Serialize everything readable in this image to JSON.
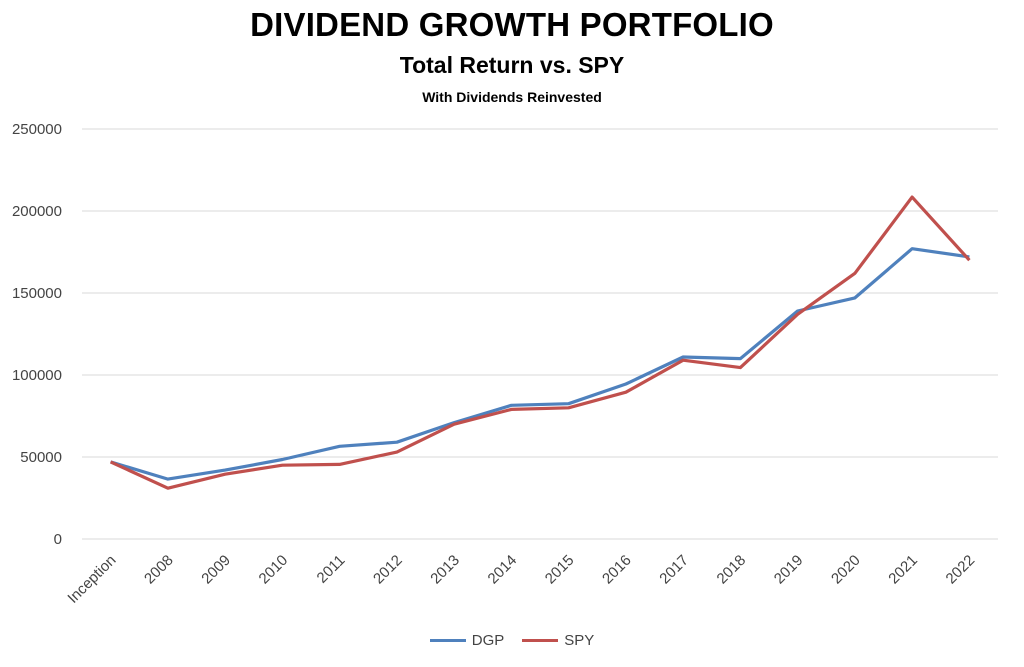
{
  "chart_data": {
    "type": "line",
    "title": "DIVIDEND GROWTH PORTFOLIO",
    "subtitle": "Total Return vs. SPY",
    "subsubtitle": "With Dividends Reinvested",
    "categories": [
      "Inception",
      "2008",
      "2009",
      "2010",
      "2011",
      "2012",
      "2013",
      "2014",
      "2015",
      "2016",
      "2017",
      "2018",
      "2019",
      "2020",
      "2021",
      "2022"
    ],
    "ylim": [
      0,
      250000
    ],
    "yticks": [
      "0",
      "50000",
      "100000",
      "150000",
      "200000",
      "250000"
    ],
    "grid": true,
    "legend": "bottom",
    "series": [
      {
        "name": "DGP",
        "color": "#4F81BD",
        "values": [
          47000,
          36500,
          42000,
          48500,
          56500,
          59000,
          71000,
          81500,
          82500,
          94500,
          111000,
          110000,
          139000,
          147000,
          177000,
          172000
        ]
      },
      {
        "name": "SPY",
        "color": "#C0504D",
        "values": [
          47000,
          31000,
          39500,
          45000,
          45500,
          53000,
          70000,
          79000,
          80000,
          89500,
          109000,
          104500,
          137000,
          162000,
          208500,
          170000
        ]
      }
    ]
  }
}
